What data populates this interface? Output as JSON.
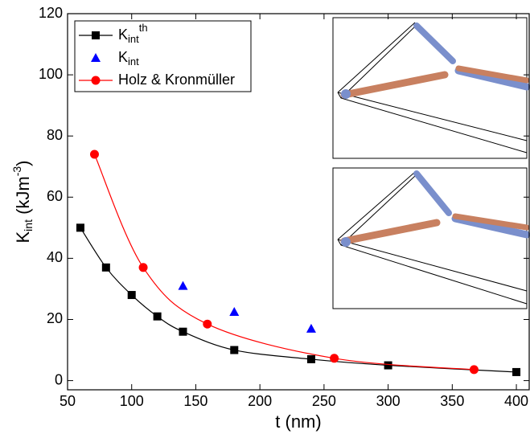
{
  "chart_data": {
    "type": "scatter",
    "x_label": "t (nm)",
    "y_label": {
      "text": "K",
      "sub": "int",
      "unit": " (kJm",
      "sup": "-3",
      "end": ")"
    },
    "xlim": [
      50,
      410
    ],
    "xticks": [
      50,
      100,
      150,
      200,
      250,
      300,
      350,
      400
    ],
    "ylim": [
      -3,
      120
    ],
    "yticks": [
      0,
      20,
      40,
      60,
      80,
      100,
      120
    ],
    "series": [
      {
        "name": {
          "text": "K",
          "sub": "int",
          "sup": "th"
        },
        "color": "#000000",
        "marker": "square",
        "line": true,
        "x": [
          60,
          80,
          100,
          120,
          140,
          180,
          240,
          300,
          400
        ],
        "values": [
          50,
          37,
          28,
          21,
          16,
          10,
          7,
          5,
          2.8
        ]
      },
      {
        "name": {
          "text": "K",
          "sub": "int"
        },
        "color": "#0000ff",
        "marker": "triangle",
        "line": false,
        "x": [
          140,
          180,
          240
        ],
        "values": [
          31,
          22.5,
          17
        ]
      },
      {
        "name": {
          "text": "Holz & Kronmüller"
        },
        "color": "#ff0000",
        "marker": "circle",
        "line": true,
        "x": [
          71,
          109,
          159,
          258,
          367
        ],
        "values": [
          74,
          37,
          18.5,
          7.3,
          3.6
        ]
      }
    ]
  }
}
